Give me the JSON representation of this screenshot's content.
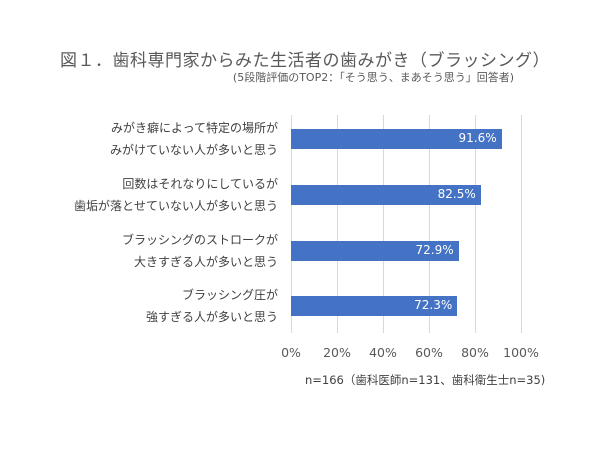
{
  "chart_data": {
    "type": "bar",
    "orientation": "horizontal",
    "title": "図１．歯科専門家からみた生活者の歯みがき（ブラッシング）",
    "subtitle": "(5段階評価のTOP2：「そう思う、まあそう思う」回答者)",
    "categories": [
      [
        "みがき癖によって特定の場所が",
        "みがけていない人が多いと思う"
      ],
      [
        "回数はそれなりにしているが",
        "歯垢が落とせていない人が多いと思う"
      ],
      [
        "ブラッシングのストロークが",
        "大きすぎる人が多いと思う"
      ],
      [
        "ブラッシング圧が",
        "強すぎる人が多いと思う"
      ]
    ],
    "values": [
      91.6,
      82.5,
      72.9,
      72.3
    ],
    "value_labels": [
      "91.6%",
      "82.5%",
      "72.9%",
      "72.3%"
    ],
    "xlabel": "",
    "ylabel": "",
    "xlim": [
      0,
      100
    ],
    "x_ticks": [
      "0%",
      "20%",
      "40%",
      "60%",
      "80%",
      "100%"
    ],
    "grid": true,
    "legend": null,
    "note": "n=166（歯科医師n=131、歯科衛生士n=35)",
    "bar_color": "#4472C4"
  }
}
